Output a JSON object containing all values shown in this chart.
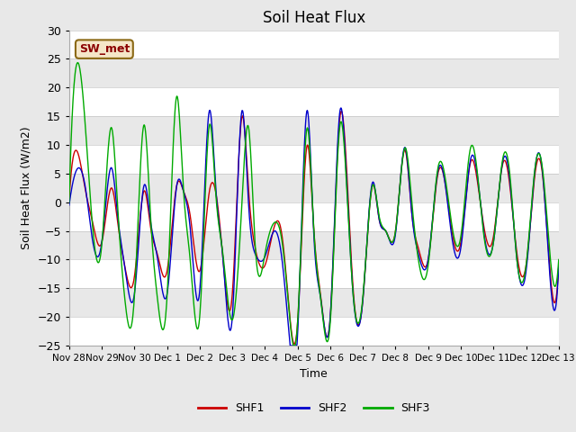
{
  "title": "Soil Heat Flux",
  "ylabel": "Soil Heat Flux (W/m2)",
  "xlabel": "Time",
  "ylim": [
    -25,
    30
  ],
  "yticks": [
    -25,
    -20,
    -15,
    -10,
    -5,
    0,
    5,
    10,
    15,
    20,
    25,
    30
  ],
  "xtick_labels": [
    "Nov 28",
    "Nov 29",
    "Nov 30",
    "Dec 1",
    "Dec 2",
    "Dec 3",
    "Dec 4",
    "Dec 5",
    "Dec 6",
    "Dec 7",
    "Dec 8",
    "Dec 9",
    "Dec 10",
    "Dec 11",
    "Dec 12",
    "Dec 13"
  ],
  "annotation_text": "SW_met",
  "legend_labels": [
    "SHF1",
    "SHF2",
    "SHF3"
  ],
  "line_colors": [
    "#cc0000",
    "#0000cc",
    "#00aa00"
  ],
  "background_color": "#e8e8e8",
  "plot_bg_color": "#e8e8e8",
  "grid_color": "#ffffff",
  "shf1_keypoints": {
    "t": [
      0.0,
      0.3,
      0.5,
      0.7,
      1.0,
      1.3,
      1.5,
      1.7,
      2.0,
      2.3,
      2.5,
      2.7,
      3.0,
      3.3,
      3.5,
      3.7,
      4.0,
      4.3,
      4.5,
      4.7,
      5.0,
      5.3,
      5.5,
      5.7,
      6.0,
      6.3,
      6.5,
      6.7,
      7.0,
      7.3,
      7.5,
      7.7,
      8.0,
      8.3,
      8.5,
      8.7,
      9.0,
      9.3,
      9.5,
      9.7,
      10.0,
      10.3,
      10.5,
      10.7,
      11.0,
      11.3,
      11.5,
      11.7,
      12.0,
      12.3,
      12.5,
      12.7,
      13.0,
      13.3,
      13.5,
      13.7,
      14.0,
      14.3,
      14.5,
      14.7,
      15.0
    ],
    "v": [
      0.5,
      8.0,
      2.0,
      -3.0,
      -7.0,
      2.5,
      -4.0,
      -11.0,
      -13.0,
      2.0,
      -4.5,
      -9.0,
      -12.0,
      3.0,
      2.0,
      -2.0,
      -12.0,
      2.0,
      1.5,
      -9.0,
      -16.0,
      15.0,
      2.0,
      -8.0,
      -11.0,
      -4.0,
      -5.0,
      -16.0,
      -21.0,
      10.0,
      -5.0,
      -16.0,
      -20.0,
      15.0,
      6.0,
      -15.0,
      -17.0,
      3.0,
      -3.0,
      -5.0,
      -5.0,
      9.0,
      -2.0,
      -8.0,
      -10.0,
      5.0,
      4.0,
      -4.0,
      -7.0,
      7.0,
      4.0,
      -4.0,
      -6.0,
      7.0,
      3.0,
      -8.0,
      -11.0,
      6.0,
      5.0,
      -9.5,
      -11.0
    ]
  },
  "shf2_keypoints": {
    "t": [
      0.0,
      0.3,
      0.5,
      0.7,
      1.0,
      1.3,
      1.5,
      1.7,
      2.0,
      2.3,
      2.5,
      2.7,
      3.0,
      3.3,
      3.5,
      3.7,
      4.0,
      4.3,
      4.5,
      4.7,
      5.0,
      5.3,
      5.5,
      5.7,
      6.0,
      6.3,
      6.5,
      6.7,
      7.0,
      7.3,
      7.5,
      7.7,
      8.0,
      8.3,
      8.5,
      8.7,
      9.0,
      9.3,
      9.5,
      9.7,
      10.0,
      10.3,
      10.5,
      10.7,
      11.0,
      11.3,
      11.5,
      11.7,
      12.0,
      12.3,
      12.5,
      12.7,
      13.0,
      13.3,
      13.5,
      13.7,
      14.0,
      14.3,
      14.5,
      14.7,
      15.0
    ],
    "v": [
      -0.5,
      6.0,
      2.5,
      -6.0,
      -7.0,
      6.0,
      -3.0,
      -11.0,
      -16.0,
      3.0,
      -3.5,
      -9.5,
      -16.0,
      3.0,
      2.0,
      -4.0,
      -15.5,
      16.0,
      2.0,
      -9.0,
      -20.0,
      16.0,
      -0.5,
      -9.0,
      -9.5,
      -5.0,
      -9.0,
      -20.5,
      -23.0,
      16.0,
      -6.0,
      -16.5,
      -20.0,
      16.0,
      4.0,
      -16.0,
      -17.0,
      3.5,
      -3.0,
      -5.0,
      -5.5,
      9.5,
      -2.0,
      -9.0,
      -10.0,
      5.5,
      4.0,
      -5.0,
      -8.0,
      7.5,
      5.0,
      -5.0,
      -7.0,
      7.5,
      4.0,
      -9.0,
      -12.0,
      7.0,
      5.5,
      -10.5,
      -11.0
    ]
  },
  "shf3_keypoints": {
    "t": [
      0.0,
      0.3,
      0.5,
      0.7,
      1.0,
      1.3,
      1.5,
      1.7,
      2.0,
      2.3,
      2.5,
      2.7,
      3.0,
      3.3,
      3.5,
      3.7,
      4.0,
      4.3,
      4.5,
      4.7,
      5.0,
      5.3,
      5.5,
      5.7,
      6.0,
      6.3,
      6.5,
      6.7,
      7.0,
      7.3,
      7.5,
      7.7,
      8.0,
      8.3,
      8.5,
      8.7,
      9.0,
      9.3,
      9.5,
      9.7,
      10.0,
      10.3,
      10.5,
      10.7,
      11.0,
      11.3,
      11.5,
      11.7,
      12.0,
      12.3,
      12.5,
      12.7,
      13.0,
      13.3,
      13.5,
      13.7,
      14.0,
      14.3,
      14.5,
      14.7,
      15.0
    ],
    "v": [
      0.0,
      24.0,
      13.0,
      -3.0,
      -7.5,
      13.0,
      -2.0,
      -16.5,
      -16.5,
      13.5,
      -3.0,
      -16.5,
      -16.5,
      18.5,
      2.5,
      -9.5,
      -20.0,
      13.5,
      1.0,
      -8.5,
      -20.5,
      0.5,
      13.0,
      -7.5,
      -9.0,
      -3.5,
      -6.0,
      -16.5,
      -21.0,
      13.0,
      -5.0,
      -16.5,
      -21.0,
      13.5,
      3.0,
      -16.0,
      -16.5,
      3.0,
      -2.5,
      -5.0,
      -5.0,
      9.5,
      0.0,
      -10.0,
      -11.0,
      6.0,
      5.0,
      -3.0,
      -6.0,
      9.5,
      5.5,
      -5.5,
      -7.0,
      8.0,
      5.0,
      -9.0,
      -11.0,
      7.0,
      6.0,
      -7.0,
      -10.0
    ]
  }
}
